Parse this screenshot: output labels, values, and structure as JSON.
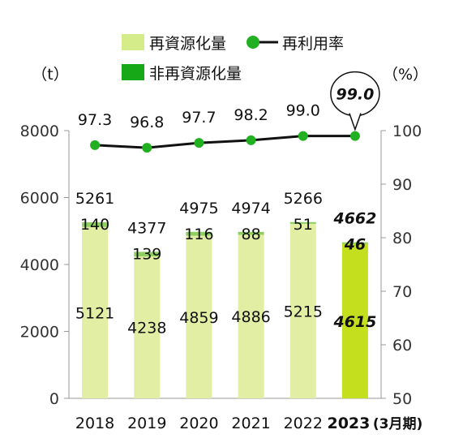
{
  "chart_data": {
    "type": "bar",
    "categories": [
      "2018",
      "2019",
      "2020",
      "2021",
      "2022",
      "2023"
    ],
    "category_suffix_last": "(3月期)",
    "highlight_index": 5,
    "legend": {
      "recycled": "再資源化量",
      "non_recycled": "非再資源化量",
      "rate": "再利用率"
    },
    "y_left_unit": "（t）",
    "y_right_unit": "（%）",
    "y_left": {
      "min": 0,
      "max": 8000,
      "ticks": [
        0,
        2000,
        4000,
        6000,
        8000
      ]
    },
    "y_right": {
      "min": 50,
      "max": 100,
      "ticks": [
        50,
        60,
        70,
        80,
        90,
        100
      ]
    },
    "series": [
      {
        "name": "再資源化量",
        "values": [
          5121,
          4238,
          4859,
          4886,
          5215,
          4615
        ]
      },
      {
        "name": "非再資源化量",
        "values": [
          140,
          139,
          116,
          88,
          51,
          46
        ]
      },
      {
        "name": "再利用率",
        "values": [
          97.3,
          96.8,
          97.7,
          98.2,
          99.0,
          99.0
        ]
      }
    ],
    "totals": [
      5261,
      4377,
      4975,
      4974,
      5266,
      4662
    ],
    "rate_labels": [
      "97.3",
      "96.8",
      "97.7",
      "98.2",
      "99.0",
      "99.0"
    ],
    "colors": {
      "recycled": "#e3eea5",
      "recycled_highlight": "#c4df1e",
      "non_recycled": "#8fcf5f",
      "legend_recycled": "#d5ec8a",
      "legend_non_recycled": "#16a816",
      "rate_line": "#111111",
      "rate_marker": "#22b022"
    }
  }
}
